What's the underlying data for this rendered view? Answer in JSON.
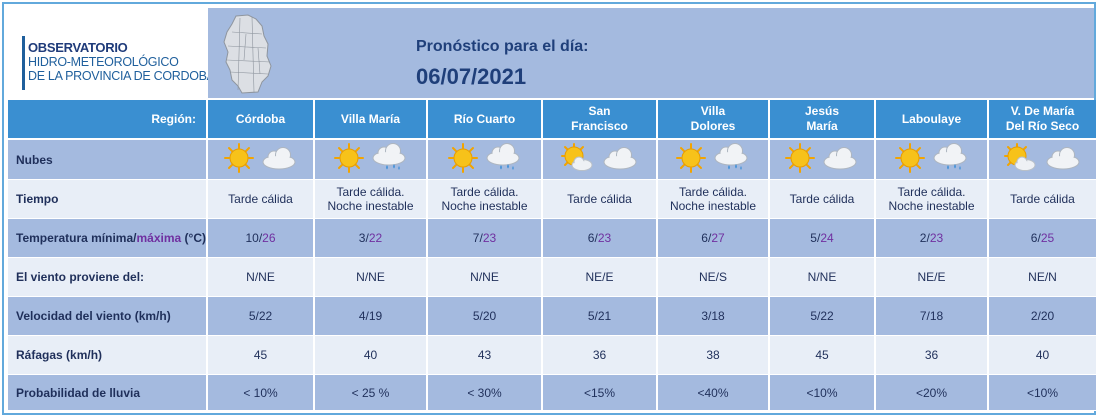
{
  "header": {
    "org": {
      "line1": "OBSERVATORIO",
      "line2": "HIDRO-METEOROLÓGICO",
      "line3": "DE LA PROVINCIA DE CORDOBA"
    },
    "title": "Pronóstico para el día:",
    "date": "06/07/2021"
  },
  "table": {
    "region_label": "Región:",
    "regions": [
      {
        "line1": "Córdoba",
        "line2": ""
      },
      {
        "line1": "Villa María",
        "line2": ""
      },
      {
        "line1": "Río Cuarto",
        "line2": ""
      },
      {
        "line1": "San",
        "line2": "Francisco"
      },
      {
        "line1": "Villa",
        "line2": "Dolores"
      },
      {
        "line1": "Jesús",
        "line2": "María"
      },
      {
        "line1": "Laboulaye",
        "line2": ""
      },
      {
        "line1": "V. De María",
        "line2": "Del Río Seco"
      }
    ],
    "row_labels": {
      "nubes": "Nubes",
      "tiempo": "Tiempo",
      "temp_prefix": "Temperatura mínima/",
      "temp_max_word": "máxima",
      "temp_suffix": " (°C)",
      "viento": "El viento proviene del:",
      "velocidad": "Velocidad del viento (km/h)",
      "rafagas": "Ráfagas (km/h)",
      "lluvia": "Probabilidad de lluvia"
    },
    "nubes_icons": [
      [
        "sun-icon",
        "cloud-icon"
      ],
      [
        "sun-icon",
        "cloud-rain-icon"
      ],
      [
        "sun-icon",
        "cloud-rain-icon"
      ],
      [
        "sun-cloud-icon",
        "cloud-icon"
      ],
      [
        "sun-icon",
        "cloud-rain-icon"
      ],
      [
        "sun-icon",
        "cloud-icon"
      ],
      [
        "sun-icon",
        "cloud-rain-icon"
      ],
      [
        "sun-cloud-icon",
        "cloud-icon"
      ]
    ],
    "tiempo": [
      {
        "line1": "Tarde cálida",
        "line2": ""
      },
      {
        "line1": "Tarde cálida.",
        "line2": "Noche inestable"
      },
      {
        "line1": "Tarde cálida.",
        "line2": "Noche inestable"
      },
      {
        "line1": "Tarde cálida",
        "line2": ""
      },
      {
        "line1": "Tarde cálida.",
        "line2": "Noche inestable"
      },
      {
        "line1": "Tarde cálida",
        "line2": ""
      },
      {
        "line1": "Tarde cálida.",
        "line2": "Noche inestable"
      },
      {
        "line1": "Tarde cálida",
        "line2": ""
      }
    ],
    "temp": [
      {
        "min": "10",
        "max": "26"
      },
      {
        "min": "3",
        "max": "22"
      },
      {
        "min": "7",
        "max": "23"
      },
      {
        "min": "6",
        "max": "23"
      },
      {
        "min": "6",
        "max": "27"
      },
      {
        "min": "5",
        "max": "24"
      },
      {
        "min": "2",
        "max": "23"
      },
      {
        "min": "6",
        "max": "25"
      }
    ],
    "viento": [
      "N/NE",
      "N/NE",
      "N/NE",
      "NE/E",
      "NE/S",
      "N/NE",
      "NE/E",
      "NE/N"
    ],
    "velocidad": [
      "5/22",
      "4/19",
      "5/20",
      "5/21",
      "3/18",
      "5/22",
      "7/18",
      "2/20"
    ],
    "rafagas": [
      "45",
      "40",
      "43",
      "36",
      "38",
      "45",
      "36",
      "40"
    ],
    "lluvia": [
      "< 10%",
      "< 25 %",
      "< 30%",
      "<15%",
      "<40%",
      "<10%",
      "<20%",
      "<10%"
    ]
  },
  "colors": {
    "header_blue": "#3a8fd1",
    "band": "#a4badf",
    "light_row": "#e8eef7",
    "max_purple": "#7030a0"
  }
}
